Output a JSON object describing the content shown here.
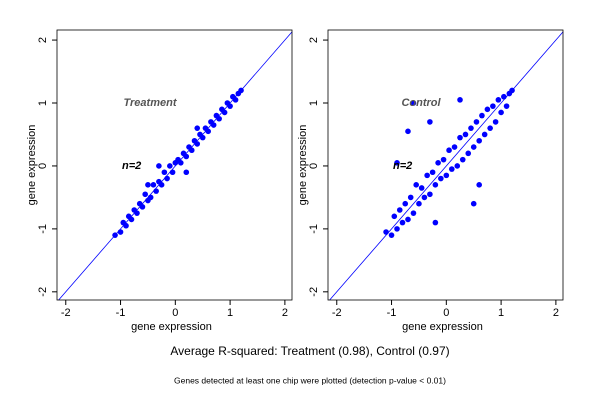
{
  "chart_data": [
    {
      "type": "scatter",
      "title": "Treatment",
      "annotation": "n=2",
      "xlabel": "gene expression",
      "ylabel": "gene expression",
      "color": "#0000ff",
      "xlim": [
        -2.16,
        2.13
      ],
      "ylim": [
        -2.13,
        2.16
      ],
      "xticks": [
        -2,
        -1,
        0,
        1,
        2
      ],
      "yticks": [
        -2,
        -1,
        0,
        1,
        2
      ],
      "x": [
        -1.1,
        -1.0,
        -0.95,
        -0.9,
        -0.85,
        -0.8,
        -0.75,
        -0.7,
        -0.65,
        -0.6,
        -0.55,
        -0.5,
        -0.45,
        -0.4,
        -0.35,
        -0.3,
        -0.25,
        -0.2,
        -0.15,
        -0.1,
        -0.05,
        0,
        0.05,
        0.1,
        0.15,
        0.2,
        0.25,
        0.3,
        0.35,
        0.4,
        0.45,
        0.5,
        0.55,
        0.6,
        0.65,
        0.7,
        0.75,
        0.8,
        0.85,
        0.9,
        0.95,
        1.0,
        1.05,
        1.1,
        1.15,
        1.2,
        -0.3,
        0.2,
        -0.5,
        0.4
      ],
      "values": [
        -1.1,
        -1.05,
        -0.9,
        -0.95,
        -0.8,
        -0.85,
        -0.7,
        -0.75,
        -0.6,
        -0.65,
        -0.45,
        -0.55,
        -0.5,
        -0.3,
        -0.4,
        -0.25,
        -0.3,
        -0.1,
        -0.2,
        0,
        -0.1,
        0.05,
        0.1,
        0.05,
        0.2,
        0.15,
        0.3,
        0.25,
        0.4,
        0.35,
        0.5,
        0.45,
        0.6,
        0.55,
        0.7,
        0.65,
        0.8,
        0.75,
        0.9,
        0.85,
        1.0,
        0.95,
        1.1,
        1.05,
        1.15,
        1.2,
        0.0,
        -0.1,
        -0.3,
        0.6
      ]
    },
    {
      "type": "scatter",
      "title": "Control",
      "annotation": "n=2",
      "xlabel": "gene expression",
      "ylabel": "gene expression",
      "color": "#0000ff",
      "xlim": [
        -2.16,
        2.13
      ],
      "ylim": [
        -2.13,
        2.16
      ],
      "xticks": [
        -2,
        -1,
        0,
        1,
        2
      ],
      "yticks": [
        -2,
        -1,
        0,
        1,
        2
      ],
      "x": [
        -1.1,
        -1.0,
        -0.95,
        -0.9,
        -0.85,
        -0.8,
        -0.75,
        -0.7,
        -0.65,
        -0.6,
        -0.55,
        -0.5,
        -0.45,
        -0.4,
        -0.35,
        -0.3,
        -0.25,
        -0.2,
        -0.15,
        -0.1,
        -0.05,
        0,
        0.05,
        0.1,
        0.15,
        0.2,
        0.25,
        0.3,
        0.35,
        0.4,
        0.45,
        0.5,
        0.55,
        0.6,
        0.65,
        0.7,
        0.75,
        0.8,
        0.85,
        0.9,
        0.95,
        1.0,
        1.05,
        1.1,
        1.15,
        1.2,
        -0.6,
        -0.9,
        0.25,
        -0.3,
        0.5,
        -0.7,
        0.6,
        -0.2
      ],
      "values": [
        -1.05,
        -1.1,
        -0.8,
        -1.0,
        -0.7,
        -0.9,
        -0.6,
        -0.85,
        -0.5,
        -0.75,
        -0.3,
        -0.6,
        -0.35,
        -0.5,
        -0.15,
        -0.45,
        -0.1,
        -0.3,
        0.05,
        -0.2,
        0.1,
        -0.15,
        0.25,
        -0.05,
        0.3,
        0.0,
        0.45,
        0.1,
        0.5,
        0.2,
        0.6,
        0.3,
        0.7,
        0.4,
        0.8,
        0.5,
        0.9,
        0.6,
        0.95,
        0.7,
        1.05,
        0.85,
        1.1,
        0.95,
        1.15,
        1.2,
        1.0,
        0.05,
        1.05,
        0.7,
        -0.6,
        0.55,
        -0.3,
        -0.9
      ]
    }
  ],
  "caption": "Average R-squared: Treatment (0.98), Control (0.97)",
  "footnote": "Genes detected at least one chip were plotted (detection p-value < 0.01)"
}
